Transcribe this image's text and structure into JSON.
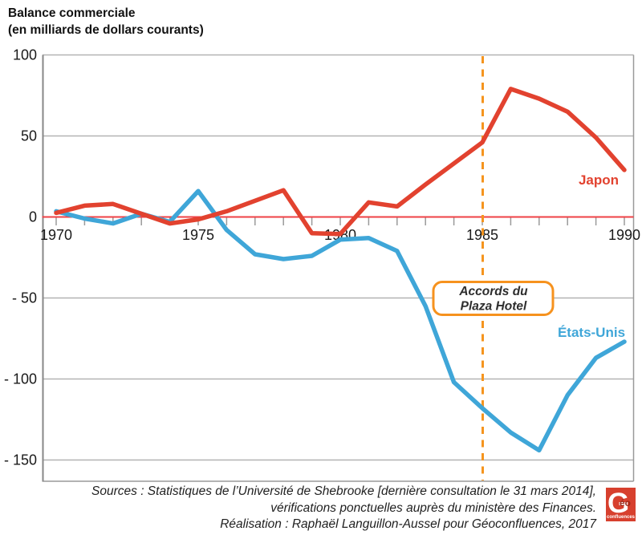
{
  "header": {
    "title": "Balance commerciale",
    "subtitle": "(en milliards de dollars courants)"
  },
  "chart_data": {
    "type": "line",
    "title": "Balance commerciale (en milliards de dollars courants)",
    "x": [
      1970,
      1971,
      1972,
      1973,
      1974,
      1975,
      1976,
      1977,
      1978,
      1979,
      1980,
      1981,
      1982,
      1983,
      1984,
      1985,
      1986,
      1987,
      1988,
      1989,
      1990
    ],
    "series": [
      {
        "name": "Japon",
        "color": "#e2422f",
        "values": [
          2.5,
          7,
          8,
          2,
          -4,
          -1.5,
          3.5,
          10,
          16.5,
          -10,
          -10.5,
          9,
          6.5,
          20,
          33,
          46,
          79,
          73,
          65,
          49,
          29
        ]
      },
      {
        "name": "États-Unis",
        "color": "#3fa6d8",
        "values": [
          3.5,
          -1,
          -4,
          2,
          -3,
          16,
          -8,
          -23,
          -26,
          -24,
          -14,
          -13,
          -21,
          -55,
          -102,
          -118,
          -133,
          -144,
          -110,
          -87,
          -77
        ]
      }
    ],
    "xticks": [
      1970,
      1975,
      1980,
      1985,
      1990
    ],
    "xtick_labels": [
      "1970",
      "1975",
      "1980",
      "1985",
      "1990"
    ],
    "yticks": [
      100,
      50,
      0,
      -50,
      -100,
      -150
    ],
    "ytick_labels": [
      "100",
      "50",
      "0",
      "- 50",
      "- 100",
      "- 150"
    ],
    "ylim": [
      -163,
      100
    ],
    "grid": "horizontal gray gridlines, red zero line, year ticks below zero line",
    "legend_position": "labels next to lines",
    "annotation": {
      "line1": "Accords du",
      "line2": "Plaza Hotel",
      "x": 1985,
      "style": "vertical orange dashed line with rounded orange box"
    },
    "colors": {
      "zero_line": "#ef4146",
      "grid": "#b3b3b3",
      "border": "#9a9a9a",
      "axis": "#878787",
      "dashed_line": "#f5941e",
      "annotation_border": "#f6921e"
    }
  },
  "footer": {
    "line1": "Sources :  Statistiques de l’Université de Shebrooke [dernière consultation le 31 mars 2014],",
    "line2": "vérifications ponctuelles auprès du ministère des Finances.",
    "line3": "Réalisation : Raphaël Languillon-Aussel pour Géoconfluences, 2017"
  },
  "logo": {
    "g": "G",
    "eo": "éo",
    "confluences": "confluences",
    "color": "#d7402e"
  }
}
